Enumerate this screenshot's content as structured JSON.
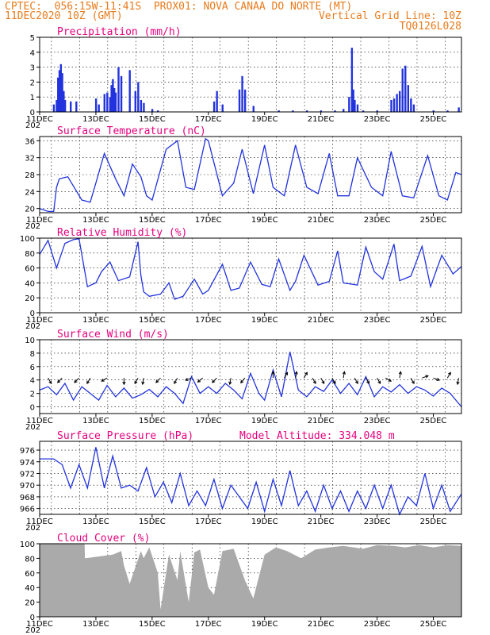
{
  "header": {
    "line1_left": "CPTEC:  056:15W-11:41S  PROX01: NOVA CANAA DO NORTE (MT)",
    "line2_left": "11DEC2020 10Z (GMT)",
    "line2_right": "Vertical Grid Line: 10Z",
    "line3_right": "TQ0126L028"
  },
  "colors": {
    "title": "#e6007e",
    "header": "#e87b1c",
    "series": "#2233dd",
    "cloud": "#aaaaaa"
  },
  "x_labels": [
    "11DEC",
    "13DEC",
    "15DEC",
    "17DEC",
    "19DEC",
    "21DEC",
    "23DEC",
    "25DEC"
  ],
  "x_range_days": [
    0,
    15
  ],
  "partial_year_label": "202",
  "chart_data": [
    {
      "type": "bar",
      "title": "Precipitation (mm/h)",
      "ylim": [
        0,
        5
      ],
      "yticks": [
        0,
        1,
        2,
        3,
        4,
        5
      ],
      "x": [
        0.5,
        0.6,
        0.65,
        0.7,
        0.75,
        0.8,
        0.85,
        0.9,
        1.1,
        1.3,
        2.0,
        2.1,
        2.3,
        2.4,
        2.5,
        2.55,
        2.6,
        2.65,
        2.7,
        2.8,
        2.9,
        3.2,
        3.4,
        3.5,
        3.6,
        3.7,
        4.0,
        4.2,
        6.2,
        6.3,
        6.5,
        7.1,
        7.2,
        7.3,
        7.6,
        8.5,
        9.0,
        9.5,
        10.0,
        10.5,
        10.8,
        11.0,
        11.1,
        11.15,
        11.2,
        11.3,
        11.5,
        12.0,
        12.5,
        12.6,
        12.7,
        12.8,
        12.9,
        13.0,
        13.1,
        13.2,
        13.3,
        14.0,
        14.5,
        14.9
      ],
      "values": [
        0.5,
        0.8,
        2.3,
        2.8,
        3.2,
        2.6,
        1.4,
        0.8,
        0.7,
        0.7,
        0.9,
        0.5,
        1.2,
        1.3,
        1.0,
        1.8,
        2.2,
        1.6,
        1.3,
        3.0,
        2.4,
        2.8,
        1.4,
        2.0,
        0.8,
        0.6,
        0.2,
        0.1,
        0.7,
        1.4,
        0.5,
        1.5,
        2.4,
        1.5,
        0.4,
        0.1,
        0.1,
        0.1,
        0.1,
        0.1,
        0.2,
        1.0,
        4.3,
        1.5,
        0.8,
        0.5,
        0.1,
        0.1,
        0.8,
        0.9,
        1.2,
        1.4,
        2.9,
        3.1,
        1.8,
        0.9,
        0.5,
        0.1,
        0.1,
        0.3
      ]
    },
    {
      "type": "line",
      "title": "Surface Temperature (nC)",
      "ylim": [
        19,
        37
      ],
      "yticks": [
        20,
        24,
        28,
        32,
        36
      ],
      "x": [
        0,
        0.3,
        0.5,
        0.6,
        0.7,
        1,
        1.5,
        1.8,
        2,
        2.3,
        2.7,
        3,
        3.3,
        3.6,
        3.8,
        4,
        4.5,
        4.9,
        5.2,
        5.5,
        5.9,
        6,
        6.5,
        6.9,
        7.2,
        7.6,
        8,
        8.3,
        8.7,
        9.1,
        9.5,
        9.9,
        10.3,
        10.6,
        11,
        11.3,
        11.8,
        12.2,
        12.5,
        12.9,
        13.3,
        13.8,
        14.2,
        14.5,
        14.8,
        15
      ],
      "y": [
        20,
        19.3,
        19.3,
        25,
        27,
        27.5,
        22,
        21.5,
        26,
        33,
        27,
        23,
        30.5,
        27.5,
        23,
        22,
        34,
        36,
        25,
        24.5,
        36.5,
        36,
        23,
        26,
        34,
        23.5,
        35,
        25,
        23,
        35,
        25,
        23.5,
        33,
        23,
        23,
        32,
        25,
        23,
        33.5,
        23,
        22.5,
        32.5,
        23,
        22,
        28.5,
        28
      ]
    },
    {
      "type": "line",
      "title": "Relative Humidity (%)",
      "ylim": [
        0,
        100
      ],
      "yticks": [
        0,
        20,
        40,
        60,
        80,
        100
      ],
      "x": [
        0,
        0.3,
        0.6,
        0.9,
        1.2,
        1.4,
        1.7,
        2,
        2.2,
        2.5,
        2.8,
        3.2,
        3.5,
        3.6,
        3.7,
        3.9,
        4.3,
        4.6,
        4.8,
        5.1,
        5.5,
        5.8,
        6,
        6.5,
        6.8,
        7.1,
        7.5,
        7.9,
        8.2,
        8.5,
        8.9,
        9.1,
        9.4,
        9.9,
        10.3,
        10.6,
        10.8,
        11.3,
        11.6,
        11.9,
        12.2,
        12.6,
        12.8,
        13.2,
        13.6,
        13.9,
        14.3,
        14.7,
        15
      ],
      "y": [
        78,
        97,
        60,
        93,
        98,
        99,
        35,
        40,
        55,
        68,
        43,
        48,
        95,
        50,
        28,
        22,
        25,
        40,
        18,
        22,
        45,
        25,
        30,
        65,
        30,
        33,
        68,
        38,
        35,
        72,
        30,
        42,
        77,
        37,
        42,
        83,
        40,
        37,
        88,
        55,
        45,
        92,
        43,
        49,
        89,
        35,
        77,
        52,
        62
      ]
    },
    {
      "type": "line",
      "title": "Surface Wind (m/s)",
      "ylim": [
        -1,
        10
      ],
      "yticks": [
        0,
        2,
        4,
        6,
        8,
        10
      ],
      "x": [
        0,
        0.3,
        0.6,
        0.9,
        1.2,
        1.5,
        1.8,
        2.1,
        2.4,
        2.7,
        3.0,
        3.3,
        3.6,
        3.9,
        4.2,
        4.5,
        4.8,
        5.1,
        5.4,
        5.7,
        6.0,
        6.3,
        6.6,
        6.9,
        7.2,
        7.5,
        7.8,
        8.0,
        8.3,
        8.6,
        8.9,
        9.2,
        9.5,
        9.8,
        10.1,
        10.4,
        10.7,
        11.0,
        11.3,
        11.6,
        11.9,
        12.2,
        12.5,
        12.8,
        13.1,
        13.4,
        13.7,
        14.0,
        14.3,
        14.6,
        15
      ],
      "y": [
        2.5,
        3,
        1.8,
        3.5,
        1,
        3,
        2,
        1,
        3.2,
        1.5,
        2.8,
        1.3,
        1.8,
        2.6,
        1.5,
        3,
        2,
        0.5,
        4.5,
        2,
        3,
        2,
        3.5,
        2.5,
        1.2,
        5,
        2,
        1,
        5.5,
        1.5,
        8.2,
        2.5,
        1.5,
        3,
        2.3,
        4,
        2,
        3.5,
        1.8,
        4.5,
        1.5,
        3,
        2.2,
        3.3,
        2,
        3,
        2.5,
        1.6,
        2.8,
        2,
        0
      ]
    },
    {
      "type": "line",
      "title": "Surface Pressure (hPa)",
      "annotation": "Model Altitude: 334.048  m",
      "ylim": [
        965,
        977.5
      ],
      "yticks": [
        966,
        968,
        970,
        972,
        974,
        976
      ],
      "x": [
        0,
        0.5,
        0.8,
        1.1,
        1.4,
        1.7,
        2.0,
        2.3,
        2.6,
        2.9,
        3.2,
        3.5,
        3.8,
        4.1,
        4.4,
        4.7,
        5.0,
        5.3,
        5.6,
        5.9,
        6.2,
        6.5,
        6.8,
        7.1,
        7.4,
        7.7,
        8.0,
        8.3,
        8.6,
        8.9,
        9.2,
        9.5,
        9.8,
        10.1,
        10.4,
        10.7,
        11.0,
        11.3,
        11.6,
        11.9,
        12.2,
        12.5,
        12.8,
        13.1,
        13.4,
        13.7,
        14.0,
        14.3,
        14.6,
        15
      ],
      "y": [
        974.5,
        974.5,
        973.5,
        969.5,
        973.5,
        969.5,
        976.5,
        969.5,
        975,
        969.5,
        970,
        969,
        973,
        968,
        970.5,
        967,
        972,
        966.5,
        969,
        966.5,
        971,
        966,
        970,
        968,
        966,
        970.5,
        965.5,
        971,
        966.5,
        972.5,
        966.5,
        969,
        965.5,
        970,
        966,
        969,
        965.5,
        969,
        966,
        970,
        966,
        970,
        965,
        968,
        966.5,
        972,
        966,
        970,
        965.5,
        968.5
      ]
    },
    {
      "type": "area",
      "title": "Cloud Cover (%)",
      "ylim": [
        0,
        100
      ],
      "yticks": [
        0,
        20,
        40,
        60,
        80,
        100
      ],
      "x": [
        0,
        1.6,
        1.61,
        2.6,
        2.9,
        3.0,
        3.2,
        3.6,
        3.7,
        3.9,
        4.2,
        4.3,
        4.6,
        4.9,
        5.0,
        5.3,
        5.5,
        5.7,
        6.0,
        6.2,
        6.5,
        6.9,
        7.3,
        7.6,
        8.0,
        8.4,
        8.8,
        9.3,
        9.8,
        10.3,
        10.8,
        11.5,
        12.0,
        12.6,
        13.0,
        13.5,
        14.0,
        14.5,
        15
      ],
      "y": [
        100,
        100,
        80,
        85,
        90,
        70,
        45,
        90,
        80,
        95,
        60,
        10,
        85,
        50,
        90,
        20,
        88,
        92,
        40,
        30,
        90,
        93,
        50,
        25,
        85,
        95,
        90,
        80,
        92,
        95,
        97,
        93,
        98,
        97,
        95,
        98,
        95,
        98,
        97
      ]
    }
  ],
  "wind_vectors": {
    "x": [
      0.3,
      0.8,
      1.4,
      1.8,
      2.4,
      3.0,
      3.5,
      3.7,
      4.3,
      4.9,
      5.4,
      5.8,
      6.3,
      6.8,
      7.3,
      8.3,
      8.7,
      9.1,
      9.4,
      9.7,
      10.0,
      10.4,
      10.8,
      11.2,
      11.6,
      12.0,
      12.3,
      12.8,
      13.2,
      13.6,
      14.0,
      14.5,
      14.9
    ],
    "angle_deg": [
      -60,
      -135,
      -135,
      -120,
      -150,
      -90,
      -120,
      -100,
      -135,
      -120,
      -160,
      -140,
      -135,
      -100,
      -130,
      90,
      60,
      80,
      60,
      -60,
      -60,
      -60,
      80,
      -60,
      -60,
      -60,
      -30,
      80,
      -60,
      20,
      -20,
      60,
      -100
    ]
  }
}
